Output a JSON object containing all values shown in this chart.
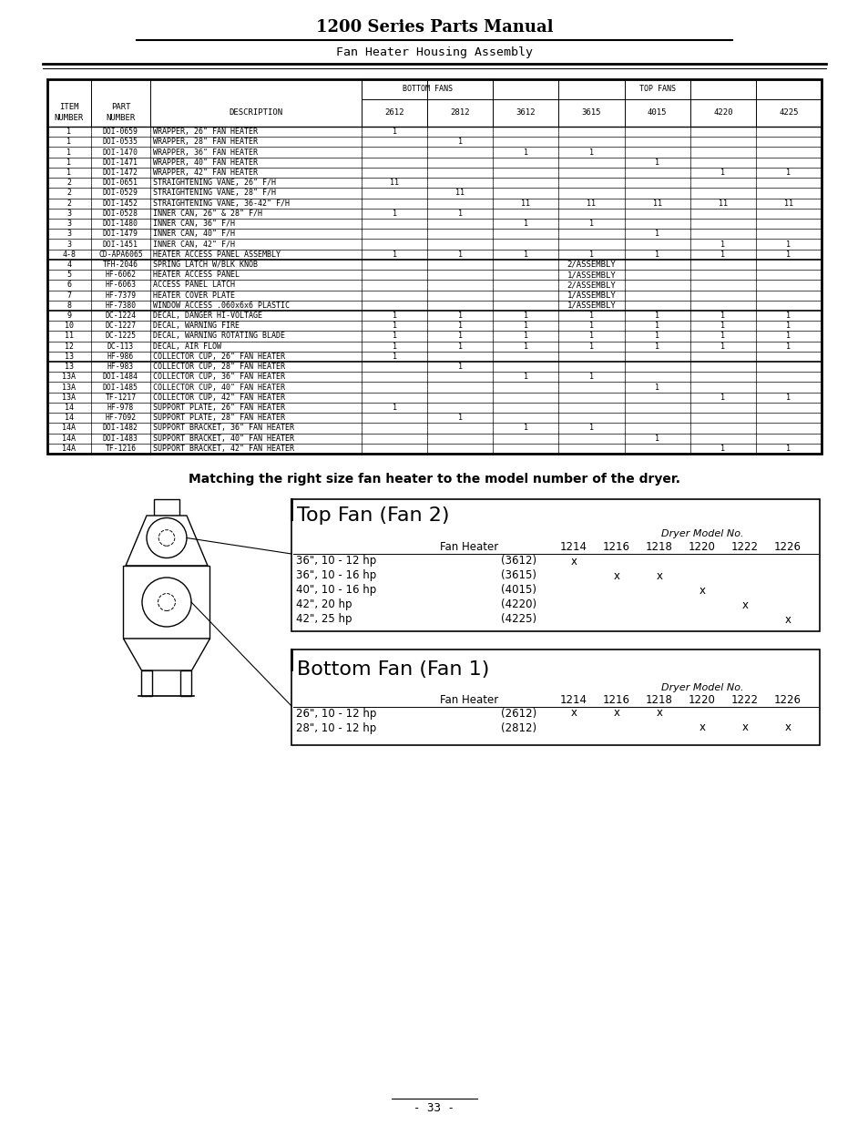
{
  "title": "1200 Series Parts Manual",
  "subtitle": "Fan Heater Housing Assembly",
  "page_number": "- 33 -",
  "col_nums": [
    "2612",
    "2812",
    "3612",
    "3615",
    "4015",
    "4220",
    "4225"
  ],
  "rows": [
    [
      "1",
      "DOI-0659",
      "WRAPPER, 26\" FAN HEATER",
      "1",
      "",
      "",
      "",
      "",
      "",
      ""
    ],
    [
      "1",
      "DOI-0535",
      "WRAPPER, 28\" FAN HEATER",
      "",
      "1",
      "",
      "",
      "",
      "",
      ""
    ],
    [
      "1",
      "DOI-1470",
      "WRAPPER, 36\" FAN HEATER",
      "",
      "",
      "1",
      "1",
      "",
      "",
      ""
    ],
    [
      "1",
      "DOI-1471",
      "WRAPPER, 40\" FAN HEATER",
      "",
      "",
      "",
      "",
      "1",
      "",
      ""
    ],
    [
      "1",
      "DOI-1472",
      "WRAPPER, 42\" FAN HEATER",
      "",
      "",
      "",
      "",
      "",
      "1",
      "1"
    ],
    [
      "2",
      "DOI-0651",
      "STRAIGHTENING VANE, 26\" F/H",
      "11",
      "",
      "",
      "",
      "",
      "",
      ""
    ],
    [
      "2",
      "DOI-0529",
      "STRAIGHTENING VANE, 28\" F/H",
      "",
      "11",
      "",
      "",
      "",
      "",
      ""
    ],
    [
      "2",
      "DOI-1452",
      "STRAIGHTENING VANE, 36-42\" F/H",
      "",
      "",
      "11",
      "11",
      "11",
      "11",
      "11"
    ],
    [
      "3",
      "DOI-0528",
      "INNER CAN, 26\" & 28\" F/H",
      "1",
      "1",
      "",
      "",
      "",
      "",
      ""
    ],
    [
      "3",
      "DOI-1480",
      "INNER CAN, 36\" F/H",
      "",
      "",
      "1",
      "1",
      "",
      "",
      ""
    ],
    [
      "3",
      "DOI-1479",
      "INNER CAN, 40\" F/H",
      "",
      "",
      "",
      "",
      "1",
      "",
      ""
    ],
    [
      "3",
      "DOI-1451",
      "INNER CAN, 42\" F/H",
      "",
      "",
      "",
      "",
      "",
      "1",
      "1"
    ],
    [
      "4-8",
      "CD-APA6065",
      "HEATER ACCESS PANEL ASSEMBLY",
      "1",
      "1",
      "1",
      "1",
      "1",
      "1",
      "1"
    ],
    [
      "4",
      "TFH-2046",
      "SPRING LATCH W/BLK KNOB",
      "SPAN",
      "2/ASSEMBLY",
      "",
      "",
      "",
      "",
      ""
    ],
    [
      "5",
      "HF-6062",
      "HEATER ACCESS PANEL",
      "SPAN",
      "1/ASSEMBLY",
      "",
      "",
      "",
      "",
      ""
    ],
    [
      "6",
      "HF-6063",
      "ACCESS PANEL LATCH",
      "SPAN",
      "2/ASSEMBLY",
      "",
      "",
      "",
      "",
      ""
    ],
    [
      "7",
      "HF-7379",
      "HEATER COVER PLATE",
      "SPAN",
      "1/ASSEMBLY",
      "",
      "",
      "",
      "",
      ""
    ],
    [
      "8",
      "HF-7380",
      "WINDOW ACCESS .060x6x6 PLASTIC",
      "SPAN",
      "1/ASSEMBLY",
      "",
      "",
      "",
      "",
      ""
    ],
    [
      "9",
      "DC-1224",
      "DECAL, DANGER HI-VOLTAGE",
      "1",
      "1",
      "1",
      "1",
      "1",
      "1",
      "1"
    ],
    [
      "10",
      "DC-1227",
      "DECAL, WARNING FIRE",
      "1",
      "1",
      "1",
      "1",
      "1",
      "1",
      "1"
    ],
    [
      "11",
      "DC-1225",
      "DECAL, WARNING ROTATING BLADE",
      "1",
      "1",
      "1",
      "1",
      "1",
      "1",
      "1"
    ],
    [
      "12",
      "DC-113",
      "DECAL, AIR FLOW",
      "1",
      "1",
      "1",
      "1",
      "1",
      "1",
      "1"
    ],
    [
      "13",
      "HF-986",
      "COLLECTOR CUP, 26\" FAN HEATER",
      "1",
      "",
      "",
      "",
      "",
      "",
      ""
    ],
    [
      "13",
      "HF-983",
      "COLLECTOR CUP, 28\" FAN HEATER",
      "",
      "1",
      "",
      "",
      "",
      "",
      ""
    ],
    [
      "13A",
      "DOI-1484",
      "COLLECTOR CUP, 36\" FAN HEATER",
      "",
      "",
      "1",
      "1",
      "",
      "",
      ""
    ],
    [
      "13A",
      "DOI-1485",
      "COLLECTOR CUP, 40\" FAN HEATER",
      "",
      "",
      "",
      "",
      "1",
      "",
      ""
    ],
    [
      "13A",
      "TF-1217",
      "COLLECTOR CUP, 42\" FAN HEATER",
      "",
      "",
      "",
      "",
      "",
      "1",
      "1"
    ],
    [
      "14",
      "HF-978",
      "SUPPORT PLATE, 26\" FAN HEATER",
      "1",
      "",
      "",
      "",
      "",
      "",
      ""
    ],
    [
      "14",
      "HF-7092",
      "SUPPORT PLATE, 28\" FAN HEATER",
      "",
      "1",
      "",
      "",
      "",
      "",
      ""
    ],
    [
      "14A",
      "DOI-1482",
      "SUPPORT BRACKET, 36\" FAN HEATER",
      "",
      "",
      "1",
      "1",
      "",
      "",
      ""
    ],
    [
      "14A",
      "DOI-1483",
      "SUPPORT BRACKET, 40\" FAN HEATER",
      "",
      "",
      "",
      "",
      "1",
      "",
      ""
    ],
    [
      "14A",
      "TF-1216",
      "SUPPORT BRACKET, 42\" FAN HEATER",
      "",
      "",
      "",
      "",
      "",
      "1",
      "1"
    ]
  ],
  "thick_after_rows": [
    12,
    17,
    22
  ],
  "bottom_text": "Matching the right size fan heater to the model number of the dryer.",
  "top_fan_title": "Top Fan (Fan 2)",
  "top_fan_label": "Dryer Model No.",
  "top_fan_models": [
    "1214",
    "1216",
    "1218",
    "1220",
    "1222",
    "1226"
  ],
  "top_fan_rows": [
    {
      "heater": "36\", 10 - 12 hp",
      "code": "(3612)",
      "marks": [
        true,
        false,
        false,
        false,
        false,
        false
      ]
    },
    {
      "heater": "36\", 10 - 16 hp",
      "code": "(3615)",
      "marks": [
        false,
        true,
        true,
        false,
        false,
        false
      ]
    },
    {
      "heater": "40\", 10 - 16 hp",
      "code": "(4015)",
      "marks": [
        false,
        false,
        false,
        true,
        false,
        false
      ]
    },
    {
      "heater": "42\", 20 hp",
      "code": "(4220)",
      "marks": [
        false,
        false,
        false,
        false,
        true,
        false
      ]
    },
    {
      "heater": "42\", 25 hp",
      "code": "(4225)",
      "marks": [
        false,
        false,
        false,
        false,
        false,
        true
      ]
    }
  ],
  "bottom_fan_title": "Bottom Fan (Fan 1)",
  "bottom_fan_label": "Dryer Model No.",
  "bottom_fan_models": [
    "1214",
    "1216",
    "1218",
    "1220",
    "1222",
    "1226"
  ],
  "bottom_fan_rows": [
    {
      "heater": "26\", 10 - 12 hp",
      "code": "(2612)",
      "marks": [
        true,
        true,
        true,
        false,
        false,
        false
      ]
    },
    {
      "heater": "28\", 10 - 12 hp",
      "code": "(2812)",
      "marks": [
        false,
        false,
        false,
        true,
        true,
        true
      ]
    }
  ]
}
